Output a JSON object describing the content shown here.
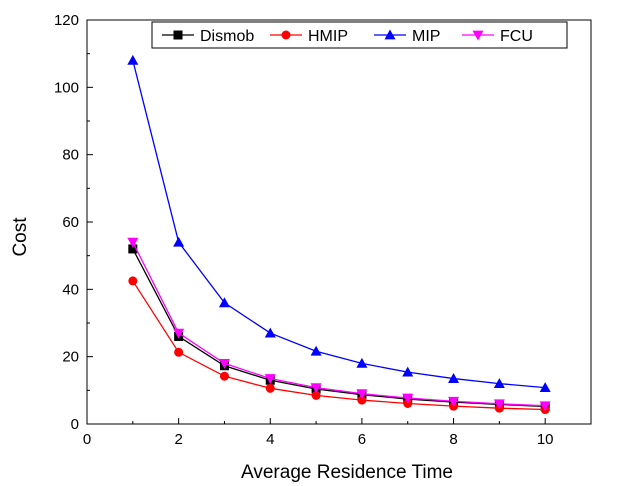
{
  "chart_data": {
    "type": "line",
    "title": "",
    "xlabel": "Average Residence Time",
    "ylabel": "Cost",
    "xlim": [
      0,
      11
    ],
    "ylim": [
      0,
      120
    ],
    "xticks": [
      0,
      2,
      4,
      6,
      8,
      10
    ],
    "yticks": [
      0,
      20,
      40,
      60,
      80,
      100,
      120
    ],
    "grid": false,
    "legend_position": "top",
    "x": [
      1,
      2,
      3,
      4,
      5,
      6,
      7,
      8,
      9,
      10
    ],
    "series": [
      {
        "name": "Dismob",
        "color": "#000000",
        "marker": "square",
        "values": [
          52,
          26,
          17.3,
          13,
          10.4,
          8.7,
          7.4,
          6.5,
          5.8,
          5.2
        ]
      },
      {
        "name": "HMIP",
        "color": "#ff0000",
        "marker": "circle",
        "values": [
          42.5,
          21.3,
          14.2,
          10.6,
          8.5,
          7.1,
          6.1,
          5.3,
          4.7,
          4.3
        ]
      },
      {
        "name": "MIP",
        "color": "#0000ff",
        "marker": "triangle-up",
        "values": [
          108,
          54,
          36,
          27,
          21.6,
          18,
          15.4,
          13.5,
          12,
          10.8
        ]
      },
      {
        "name": "FCU",
        "color": "#ff00ff",
        "marker": "triangle-down",
        "values": [
          54,
          27,
          18,
          13.5,
          10.8,
          9,
          7.7,
          6.75,
          6,
          5.4
        ]
      }
    ]
  }
}
